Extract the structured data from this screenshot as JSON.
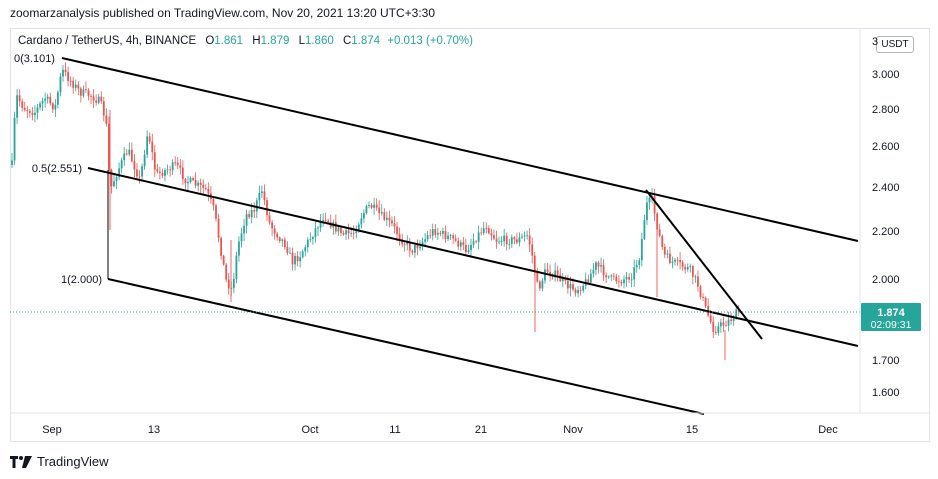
{
  "header": {
    "published": "zoomarzanalysis published on TradingView.com, Nov 20, 2021 13:20 UTC+3:30"
  },
  "symbol": {
    "name": "Cardano / TetherUS, 4h, BINANCE",
    "open_label": "O",
    "open": "1.861",
    "high_label": "H",
    "high": "1.879",
    "low_label": "L",
    "low": "1.860",
    "close_label": "C",
    "close": "1.874",
    "change": "+0.013 (+0.70%)"
  },
  "currency_button": "USDT",
  "footer": {
    "brand": "TradingView"
  },
  "chart_data": {
    "type": "candlestick",
    "y_axis_ticks": [
      "3.000",
      "2.800",
      "2.600",
      "2.400",
      "2.200",
      "2.000",
      "1.700",
      "1.600"
    ],
    "x_axis_ticks": [
      "Sep",
      "13",
      "Oct",
      "11",
      "21",
      "Nov",
      "15",
      "Dec"
    ],
    "last_price": {
      "value": "1.874",
      "countdown": "02:09:31"
    },
    "fib_levels": [
      {
        "label": "0(3.101)"
      },
      {
        "label": "0.5(2.551)"
      },
      {
        "label": "1(2.000)"
      }
    ],
    "colors": {
      "up": "#26a69a",
      "down": "#ef5350",
      "lines": "#000000",
      "last_price": "#26a69a"
    }
  }
}
